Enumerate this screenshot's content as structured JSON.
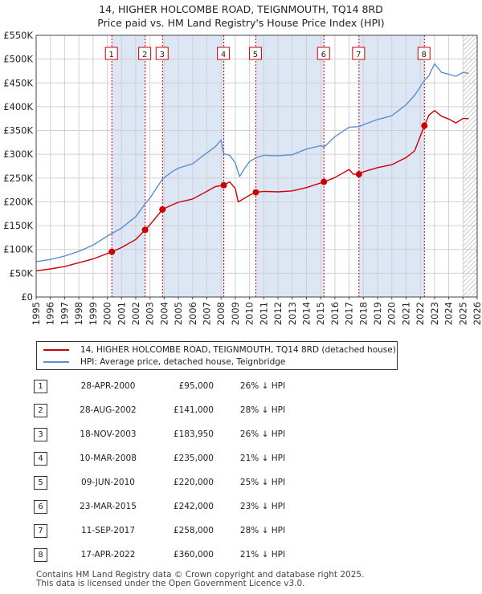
{
  "title": {
    "line1": "14, HIGHER HOLCOMBE ROAD, TEIGNMOUTH, TQ14 8RD",
    "line2": "Price paid vs. HM Land Registry's House Price Index (HPI)"
  },
  "colors": {
    "property": "#cc0000",
    "hpi": "#5b8fd0",
    "shade": "#dce6f5",
    "grid": "#d0d0d0"
  },
  "chart_data": {
    "type": "line",
    "x_range": [
      1995,
      2026
    ],
    "ylim": [
      0,
      550000
    ],
    "y_ticks": [
      {
        "value": 0,
        "label": "£0"
      },
      {
        "value": 50000,
        "label": "£50K"
      },
      {
        "value": 100000,
        "label": "£100K"
      },
      {
        "value": 150000,
        "label": "£150K"
      },
      {
        "value": 200000,
        "label": "£200K"
      },
      {
        "value": 250000,
        "label": "£250K"
      },
      {
        "value": 300000,
        "label": "£300K"
      },
      {
        "value": 350000,
        "label": "£350K"
      },
      {
        "value": 400000,
        "label": "£400K"
      },
      {
        "value": 450000,
        "label": "£450K"
      },
      {
        "value": 500000,
        "label": "£500K"
      },
      {
        "value": 550000,
        "label": "£550K"
      }
    ],
    "x_ticks": [
      "1995",
      "1996",
      "1997",
      "1998",
      "1999",
      "2000",
      "2001",
      "2002",
      "2003",
      "2004",
      "2005",
      "2006",
      "2007",
      "2008",
      "2009",
      "2010",
      "2011",
      "2012",
      "2013",
      "2014",
      "2015",
      "2016",
      "2017",
      "2018",
      "2019",
      "2020",
      "2021",
      "2022",
      "2023",
      "2024",
      "2025",
      "2026"
    ],
    "shaded_ranges": [
      [
        2000.32,
        2002.66
      ],
      [
        2003.88,
        2008.19
      ],
      [
        2010.44,
        2015.23
      ],
      [
        2017.69,
        2022.29
      ]
    ],
    "hatched_from": 2025.0,
    "series": [
      {
        "name": "14, HIGHER HOLCOMBE ROAD, TEIGNMOUTH, TQ14 8RD (detached house)",
        "x": [
          1995.0,
          1996.0,
          1997.0,
          1998.0,
          1999.0,
          2000.32,
          2001.0,
          2002.0,
          2002.66,
          2003.0,
          2003.88,
          2004.5,
          2005.0,
          2006.0,
          2007.0,
          2007.6,
          2008.19,
          2008.6,
          2009.0,
          2009.2,
          2009.5,
          2010.0,
          2010.44,
          2011.0,
          2012.0,
          2013.0,
          2014.0,
          2015.23,
          2016.0,
          2017.0,
          2017.3,
          2017.69,
          2018.0,
          2019.0,
          2020.0,
          2021.0,
          2021.6,
          2022.29,
          2022.6,
          2023.0,
          2023.5,
          2024.0,
          2024.5,
          2025.0,
          2025.4
        ],
        "values": [
          55000,
          59000,
          64000,
          72000,
          80000,
          95000,
          104000,
          121000,
          141000,
          152000,
          183950,
          193000,
          199000,
          206000,
          222000,
          232000,
          235000,
          242000,
          228000,
          200000,
          205000,
          214000,
          220000,
          222000,
          221000,
          223000,
          230000,
          242000,
          251000,
          268000,
          258000,
          258000,
          263000,
          272000,
          278000,
          293000,
          307000,
          360000,
          382000,
          392000,
          380000,
          374000,
          366000,
          375000,
          375000
        ]
      },
      {
        "name": "HPI: Average price, detached house, Teignbridge",
        "x": [
          1995.0,
          1996.0,
          1997.0,
          1998.0,
          1999.0,
          2000.0,
          2001.0,
          2002.0,
          2002.66,
          2003.0,
          2003.88,
          2004.5,
          2005.0,
          2006.0,
          2007.0,
          2007.6,
          2008.0,
          2008.19,
          2008.6,
          2009.0,
          2009.3,
          2009.6,
          2010.0,
          2010.44,
          2011.0,
          2012.0,
          2013.0,
          2014.0,
          2015.0,
          2015.23,
          2016.0,
          2017.0,
          2017.69,
          2018.0,
          2019.0,
          2020.0,
          2021.0,
          2021.6,
          2022.0,
          2022.29,
          2022.6,
          2023.0,
          2023.5,
          2024.0,
          2024.5,
          2025.0,
          2025.4
        ],
        "values": [
          74000,
          79000,
          86000,
          96000,
          109000,
          128000,
          145000,
          169000,
          196000,
          208000,
          248000,
          262000,
          271000,
          280000,
          303000,
          316000,
          330000,
          301000,
          298000,
          282000,
          253000,
          268000,
          285000,
          292000,
          298000,
          297000,
          299000,
          311000,
          318000,
          315000,
          337000,
          357000,
          358000,
          362000,
          373000,
          381000,
          404000,
          424000,
          442000,
          455000,
          465000,
          490000,
          472000,
          468000,
          464000,
          472000,
          470000
        ]
      }
    ],
    "sales": [
      {
        "num": "1",
        "x": 2000.32,
        "value": 95000
      },
      {
        "num": "2",
        "x": 2002.66,
        "value": 141000
      },
      {
        "num": "3",
        "x": 2003.88,
        "value": 183950
      },
      {
        "num": "4",
        "x": 2008.19,
        "value": 235000
      },
      {
        "num": "5",
        "x": 2010.44,
        "value": 220000
      },
      {
        "num": "6",
        "x": 2015.23,
        "value": 242000
      },
      {
        "num": "7",
        "x": 2017.69,
        "value": 258000
      },
      {
        "num": "8",
        "x": 2022.29,
        "value": 360000
      }
    ]
  },
  "legend": {
    "property_label": "14, HIGHER HOLCOMBE ROAD, TEIGNMOUTH, TQ14 8RD (detached house)",
    "hpi_label": "HPI: Average price, detached house, Teignbridge"
  },
  "table": [
    {
      "num": "1",
      "date": "28-APR-2000",
      "price": "£95,000",
      "diff": "26% ↓ HPI"
    },
    {
      "num": "2",
      "date": "28-AUG-2002",
      "price": "£141,000",
      "diff": "28% ↓ HPI"
    },
    {
      "num": "3",
      "date": "18-NOV-2003",
      "price": "£183,950",
      "diff": "26% ↓ HPI"
    },
    {
      "num": "4",
      "date": "10-MAR-2008",
      "price": "£235,000",
      "diff": "21% ↓ HPI"
    },
    {
      "num": "5",
      "date": "09-JUN-2010",
      "price": "£220,000",
      "diff": "25% ↓ HPI"
    },
    {
      "num": "6",
      "date": "23-MAR-2015",
      "price": "£242,000",
      "diff": "23% ↓ HPI"
    },
    {
      "num": "7",
      "date": "11-SEP-2017",
      "price": "£258,000",
      "diff": "28% ↓ HPI"
    },
    {
      "num": "8",
      "date": "17-APR-2022",
      "price": "£360,000",
      "diff": "21% ↓ HPI"
    }
  ],
  "footer": {
    "line1": "Contains HM Land Registry data © Crown copyright and database right 2025.",
    "line2": "This data is licensed under the Open Government Licence v3.0."
  }
}
